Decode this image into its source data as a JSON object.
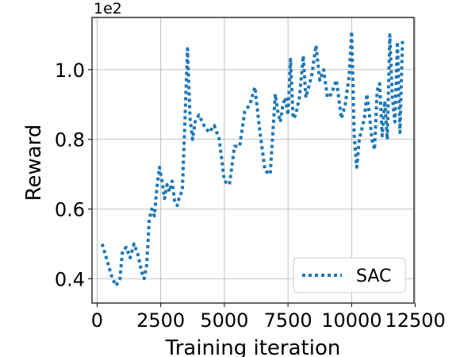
{
  "chart_data": {
    "type": "line",
    "title": "",
    "xlabel": "Training iteration",
    "ylabel": "Reward",
    "y_offset_label": "1e2",
    "xlim": [
      -200,
      12450
    ],
    "ylim": [
      0.33,
      1.15
    ],
    "xticks": [
      0,
      2500,
      5000,
      7500,
      10000,
      12500
    ],
    "xtick_labels": [
      "0",
      "2500",
      "5000",
      "7500",
      "10000",
      "12500"
    ],
    "yticks": [
      0.4,
      0.6,
      0.8,
      1.0
    ],
    "ytick_labels": [
      "0.4",
      "0.6",
      "0.8",
      "1.0"
    ],
    "grid": true,
    "legend_position": "lower-right",
    "series": [
      {
        "name": "SAC",
        "color": "#1f77b4",
        "line_style": "dotted",
        "x": [
          200,
          400,
          600,
          750,
          900,
          1000,
          1150,
          1300,
          1450,
          1600,
          1750,
          1850,
          1950,
          2050,
          2150,
          2250,
          2350,
          2450,
          2550,
          2650,
          2750,
          2850,
          2950,
          3050,
          3150,
          3250,
          3350,
          3450,
          3550,
          3650,
          3750,
          3850,
          4000,
          4200,
          4400,
          4600,
          4800,
          5000,
          5200,
          5400,
          5600,
          5800,
          6000,
          6200,
          6400,
          6600,
          6800,
          7000,
          7100,
          7200,
          7300,
          7400,
          7500,
          7600,
          7700,
          7800,
          7950,
          8100,
          8200,
          8350,
          8450,
          8600,
          8750,
          8900,
          9050,
          9200,
          9400,
          9600,
          9750,
          9900,
          10000,
          10100,
          10200,
          10300,
          10400,
          10500,
          10600,
          10700,
          10800,
          10900,
          11000,
          11100,
          11200,
          11300,
          11400,
          11500,
          11600,
          11700,
          11800,
          11900,
          12000
        ],
        "y": [
          0.5,
          0.45,
          0.4,
          0.38,
          0.4,
          0.48,
          0.49,
          0.46,
          0.5,
          0.47,
          0.42,
          0.4,
          0.44,
          0.57,
          0.6,
          0.58,
          0.66,
          0.72,
          0.68,
          0.63,
          0.67,
          0.65,
          0.68,
          0.62,
          0.61,
          0.64,
          0.65,
          0.85,
          1.06,
          0.86,
          0.8,
          0.85,
          0.87,
          0.84,
          0.82,
          0.84,
          0.8,
          0.68,
          0.67,
          0.78,
          0.78,
          0.88,
          0.9,
          0.95,
          0.82,
          0.71,
          0.7,
          0.93,
          0.88,
          0.85,
          0.9,
          0.92,
          0.87,
          1.03,
          0.86,
          0.87,
          0.92,
          1.04,
          0.92,
          0.96,
          0.99,
          1.07,
          0.97,
          1.0,
          0.92,
          0.93,
          0.97,
          0.86,
          0.9,
          0.98,
          1.11,
          0.81,
          0.72,
          0.8,
          0.83,
          0.86,
          0.93,
          0.87,
          0.8,
          0.77,
          0.94,
          0.96,
          0.81,
          0.91,
          0.8,
          1.1,
          0.92,
          0.85,
          1.08,
          0.82,
          1.09
        ]
      }
    ]
  }
}
